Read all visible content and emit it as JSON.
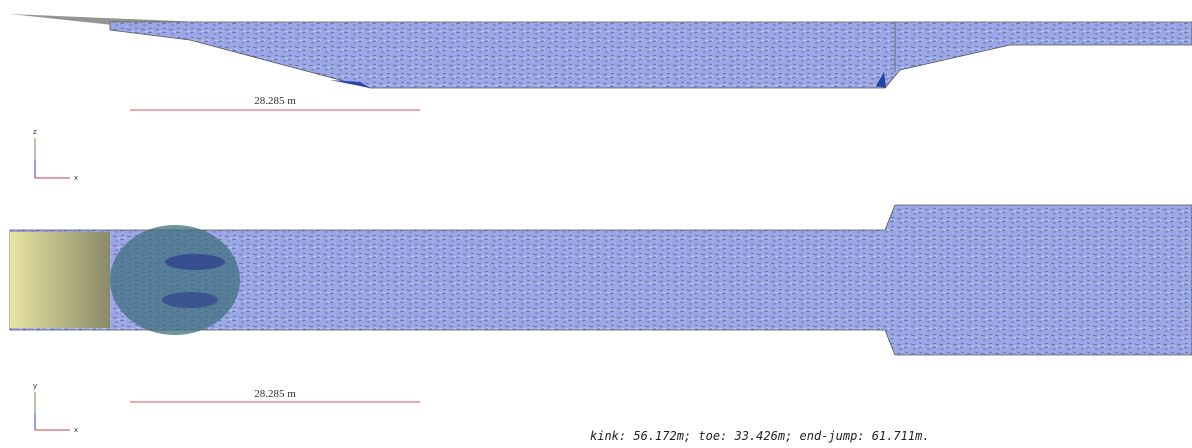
{
  "views": [
    {
      "scale_label": "28.285 m",
      "axis": {
        "vertical": "z",
        "horizontal": "x"
      }
    },
    {
      "scale_label": "28.285 m",
      "axis": {
        "vertical": "y",
        "horizontal": "x"
      }
    }
  ],
  "footer": "kink: 56.172m; toe: 33.426m; end-jump: 61.711m."
}
